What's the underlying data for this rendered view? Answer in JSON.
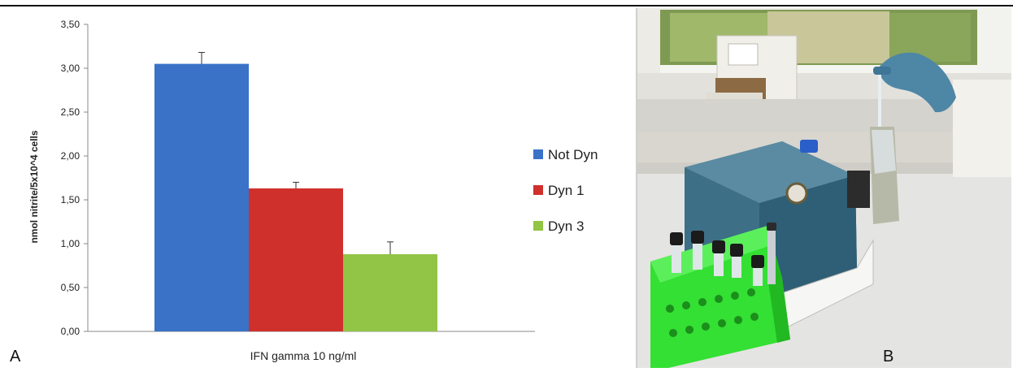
{
  "panel_labels": {
    "a": "A",
    "b": "B"
  },
  "chart_data": {
    "type": "bar",
    "categories": [
      "IFN gamma 10 ng/ml"
    ],
    "series": [
      {
        "name": "Not Dyn",
        "values": [
          3.05
        ],
        "error": [
          0.13
        ],
        "color": "#3a72c8"
      },
      {
        "name": "Dyn 1",
        "values": [
          1.63
        ],
        "error": [
          0.07
        ],
        "color": "#d0302b"
      },
      {
        "name": "Dyn 3",
        "values": [
          0.88
        ],
        "error": [
          0.14
        ],
        "color": "#92c445"
      }
    ],
    "title": "",
    "xlabel": "IFN gamma 10 ng/ml",
    "ylabel": "nmol nitrite/5x10^4 cells",
    "ylim": [
      0,
      3.5
    ],
    "yticks": [
      "0,00",
      "0,50",
      "1,00",
      "1,50",
      "2,00",
      "2,50",
      "3,00",
      "3,50"
    ],
    "grid": false,
    "legend_position": "right"
  },
  "photo": {
    "description_icons": [
      "window-icon",
      "instrument-icon",
      "tube-rack-icon",
      "gloved-hand-icon"
    ],
    "colors": {
      "window_frame": "#e8e8e4",
      "instrument": "#3d6f86",
      "rack": "#3ae63a",
      "glove": "#4e86a6",
      "counter": "#e3e3e1"
    }
  }
}
